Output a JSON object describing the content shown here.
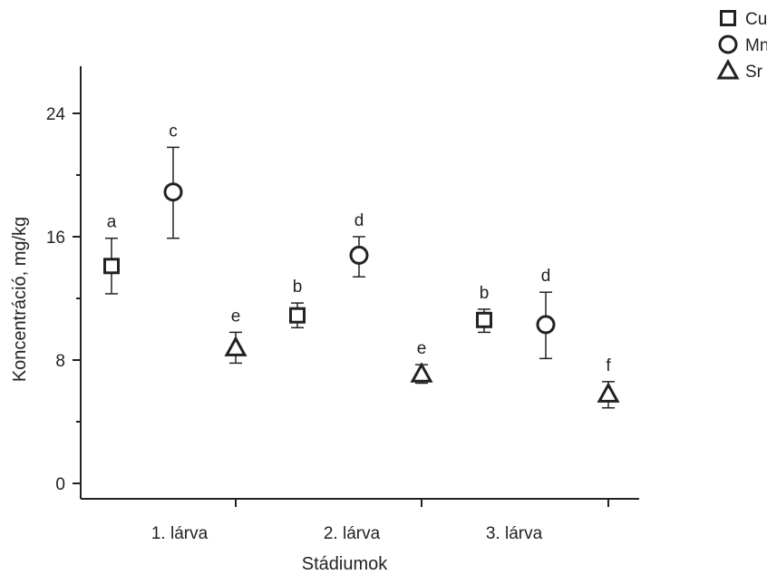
{
  "chart_data": {
    "type": "scatter",
    "xlabel": "Stádiumok",
    "ylabel": "Koncentráció, mg/kg",
    "ylim": [
      0,
      26
    ],
    "yticks": [
      "0",
      "8",
      "16",
      "24"
    ],
    "categories": [
      "1. lárva",
      "2. lárva",
      "3. lárva"
    ],
    "legend_position": "top-right",
    "series": [
      {
        "name": "Cu",
        "marker": "square",
        "points": [
          {
            "category": "1. lárva",
            "value": 14.1,
            "err_low": 12.3,
            "err_high": 15.9,
            "label": "a"
          },
          {
            "category": "2. lárva",
            "value": 10.9,
            "err_low": 10.1,
            "err_high": 11.7,
            "label": "b"
          },
          {
            "category": "3. lárva",
            "value": 10.6,
            "err_low": 9.8,
            "err_high": 11.3,
            "label": "b"
          }
        ]
      },
      {
        "name": "Mn",
        "marker": "circle",
        "points": [
          {
            "category": "1. lárva",
            "value": 18.9,
            "err_low": 15.9,
            "err_high": 21.8,
            "label": "c"
          },
          {
            "category": "2. lárva",
            "value": 14.8,
            "err_low": 13.4,
            "err_high": 16.0,
            "label": "d"
          },
          {
            "category": "3. lárva",
            "value": 10.3,
            "err_low": 8.1,
            "err_high": 12.4,
            "label": "d"
          }
        ]
      },
      {
        "name": "Sr",
        "marker": "triangle",
        "points": [
          {
            "category": "1. lárva",
            "value": 8.8,
            "err_low": 7.8,
            "err_high": 9.8,
            "label": "e"
          },
          {
            "category": "2. lárva",
            "value": 7.1,
            "err_low": 6.5,
            "err_high": 7.7,
            "label": "e"
          },
          {
            "category": "3. lárva",
            "value": 5.8,
            "err_low": 4.9,
            "err_high": 6.6,
            "label": "f"
          }
        ]
      }
    ]
  }
}
